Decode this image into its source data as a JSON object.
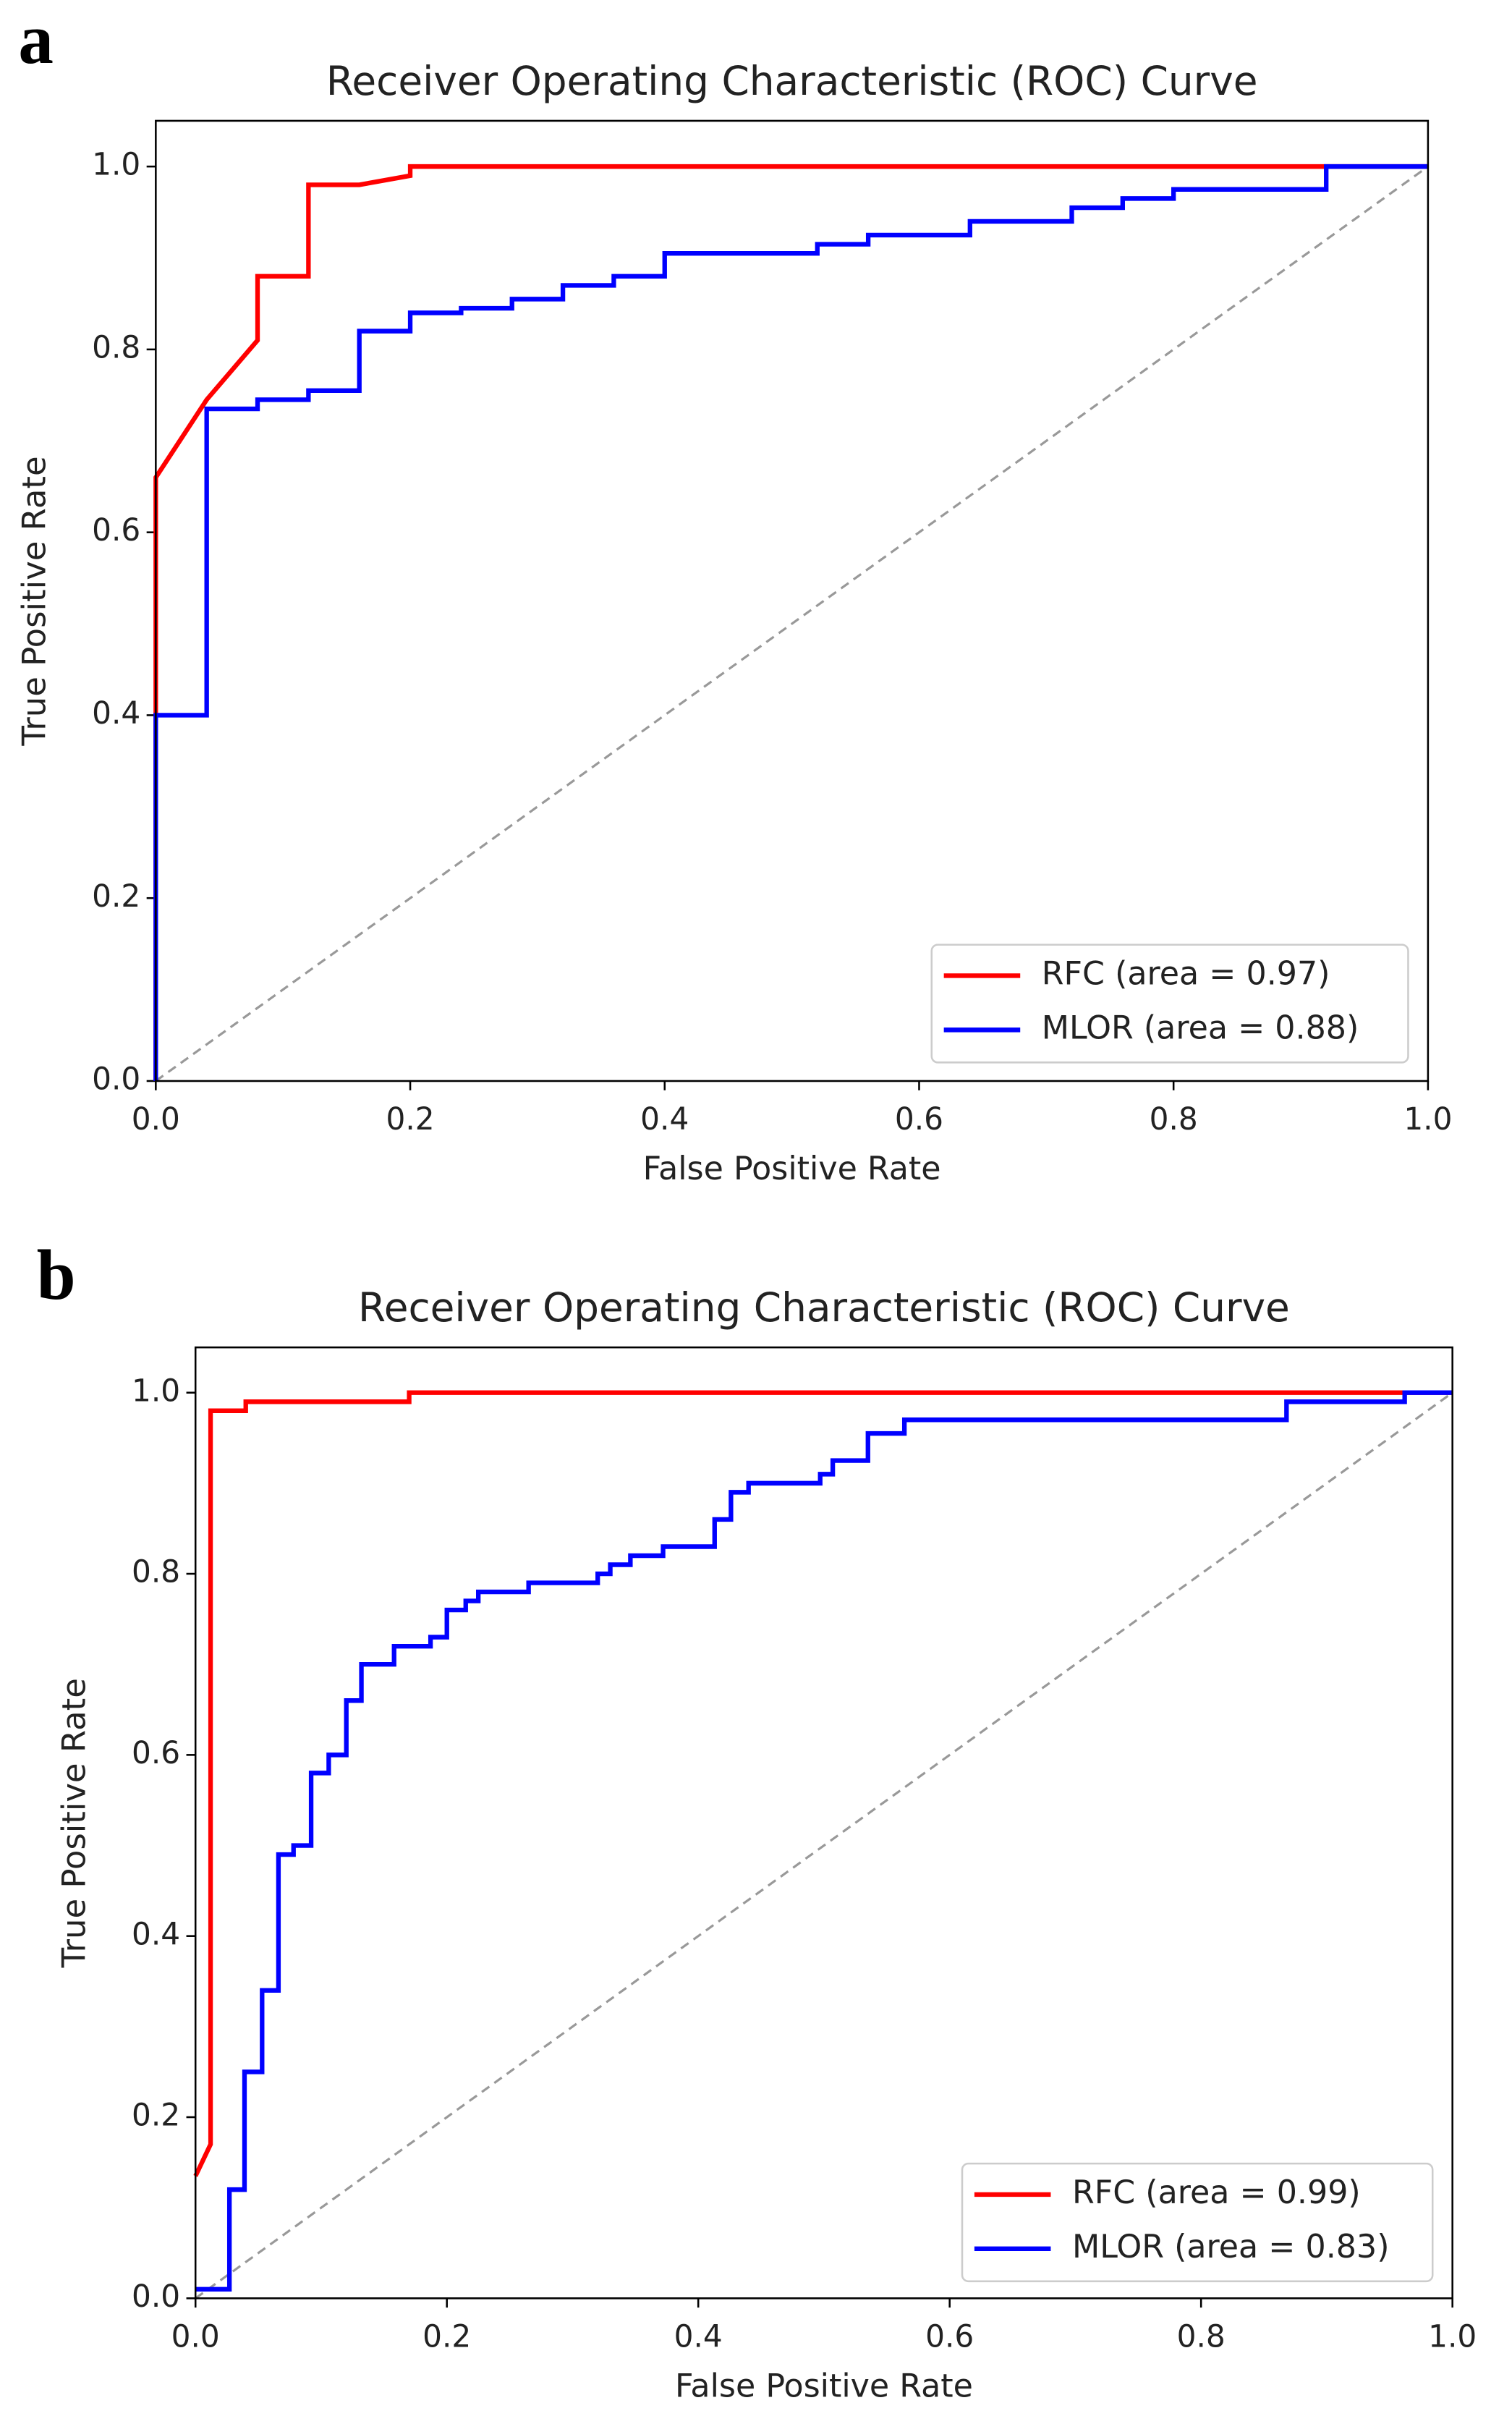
{
  "chart_data": [
    {
      "type": "line",
      "panel_label": "a",
      "title": "Receiver Operating Characteristic (ROC) Curve",
      "xlabel": "False Positive Rate",
      "ylabel": "True Positive Rate",
      "xlim": [
        0,
        1
      ],
      "ylim": [
        0,
        1.05
      ],
      "xticks": [
        {
          "value": 0,
          "label": "0.0"
        },
        0.2,
        0.4,
        0.6,
        0.8,
        {
          "value": 1,
          "label": "1.0"
        }
      ],
      "yticks": [
        {
          "value": 0,
          "label": "0.0"
        },
        0.2,
        0.4,
        0.6,
        0.8,
        {
          "value": 1,
          "label": "1.0"
        }
      ],
      "legend": "lower right",
      "series": [
        {
          "name": "RFC (area = 0.97)",
          "color": "#ff0000",
          "x": [
            0,
            0,
            0.04,
            0.08,
            0.08,
            0.12,
            0.12,
            0.16,
            0.2,
            0.2,
            0.92,
            1
          ],
          "values": [
            0,
            0.66,
            0.745,
            0.81,
            0.88,
            0.88,
            0.98,
            0.98,
            0.99,
            1,
            1,
            1
          ]
        },
        {
          "name": "MLOR (area = 0.88)",
          "color": "#0000ff",
          "x": [
            0,
            0,
            0.04,
            0.04,
            0.08,
            0.08,
            0.12,
            0.12,
            0.16,
            0.16,
            0.2,
            0.2,
            0.24,
            0.24,
            0.28,
            0.28,
            0.32,
            0.32,
            0.36,
            0.36,
            0.4,
            0.4,
            0.52,
            0.52,
            0.56,
            0.56,
            0.64,
            0.64,
            0.72,
            0.72,
            0.76,
            0.76,
            0.8,
            0.8,
            0.92,
            0.92,
            1
          ],
          "values": [
            0,
            0.4,
            0.4,
            0.735,
            0.735,
            0.745,
            0.745,
            0.755,
            0.755,
            0.82,
            0.82,
            0.84,
            0.84,
            0.845,
            0.845,
            0.855,
            0.855,
            0.87,
            0.87,
            0.88,
            0.88,
            0.905,
            0.905,
            0.915,
            0.915,
            0.925,
            0.925,
            0.94,
            0.94,
            0.955,
            0.955,
            0.965,
            0.965,
            0.975,
            0.975,
            1,
            1
          ]
        }
      ]
    },
    {
      "type": "line",
      "panel_label": "b",
      "title": "Receiver Operating Characteristic (ROC) Curve",
      "xlabel": "False Positive Rate",
      "ylabel": "True Positive Rate",
      "xlim": [
        0,
        1
      ],
      "ylim": [
        0,
        1.05
      ],
      "xticks": [
        {
          "value": 0,
          "label": "0.0"
        },
        0.2,
        0.4,
        0.6,
        0.8,
        {
          "value": 1,
          "label": "1.0"
        }
      ],
      "yticks": [
        {
          "value": 0,
          "label": "0.0"
        },
        0.2,
        0.4,
        0.6,
        0.8,
        {
          "value": 1,
          "label": "1.0"
        }
      ],
      "legend": "lower right",
      "series": [
        {
          "name": "RFC (area = 0.99)",
          "color": "#ff0000",
          "x": [
            0,
            0.012,
            0.012,
            0.04,
            0.04,
            0.17,
            0.17,
            1
          ],
          "values": [
            0.135,
            0.17,
            0.98,
            0.98,
            0.99,
            0.99,
            1,
            1
          ]
        },
        {
          "name": "MLOR (area = 0.83)",
          "color": "#0000ff",
          "x": [
            0,
            0.027,
            0.027,
            0.039,
            0.039,
            0.053,
            0.053,
            0.066,
            0.066,
            0.078,
            0.078,
            0.092,
            0.092,
            0.106,
            0.106,
            0.12,
            0.12,
            0.132,
            0.132,
            0.158,
            0.158,
            0.187,
            0.187,
            0.2,
            0.2,
            0.215,
            0.215,
            0.225,
            0.225,
            0.265,
            0.265,
            0.32,
            0.32,
            0.33,
            0.33,
            0.346,
            0.346,
            0.372,
            0.372,
            0.413,
            0.413,
            0.426,
            0.426,
            0.44,
            0.44,
            0.497,
            0.497,
            0.507,
            0.507,
            0.535,
            0.535,
            0.564,
            0.564,
            0.868,
            0.868,
            0.962,
            0.962,
            1
          ],
          "values": [
            0.01,
            0.01,
            0.12,
            0.12,
            0.25,
            0.25,
            0.34,
            0.34,
            0.49,
            0.49,
            0.5,
            0.5,
            0.58,
            0.58,
            0.6,
            0.6,
            0.66,
            0.66,
            0.7,
            0.7,
            0.72,
            0.72,
            0.73,
            0.73,
            0.76,
            0.76,
            0.77,
            0.77,
            0.78,
            0.78,
            0.79,
            0.79,
            0.8,
            0.8,
            0.81,
            0.81,
            0.82,
            0.82,
            0.83,
            0.83,
            0.86,
            0.86,
            0.89,
            0.89,
            0.9,
            0.9,
            0.91,
            0.91,
            0.925,
            0.925,
            0.955,
            0.955,
            0.97,
            0.97,
            0.99,
            0.99,
            1,
            1
          ]
        }
      ]
    }
  ]
}
